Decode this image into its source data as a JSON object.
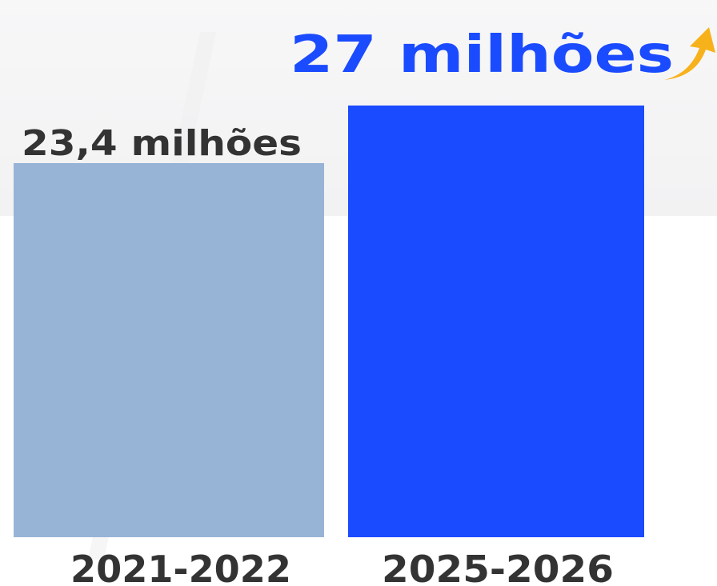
{
  "chart_data": {
    "type": "bar",
    "categories": [
      "2021-2022",
      "2025-2026"
    ],
    "values": [
      23.4,
      27
    ],
    "data_labels": [
      "23,4 milhões",
      "27 milhões"
    ],
    "unit": "milhões",
    "title": "",
    "xlabel": "",
    "ylabel": "",
    "ylim": [
      0,
      28
    ],
    "grid": false,
    "legend": "none",
    "colors": {
      "bar_2021_2022": "#97b4d6",
      "bar_2025_2026": "#1b4bff",
      "label_dark": "#333333",
      "label_highlight": "#1b4bff",
      "arrow": "#f7b21b"
    },
    "icons": {
      "increase": "up-arrow-icon"
    }
  }
}
